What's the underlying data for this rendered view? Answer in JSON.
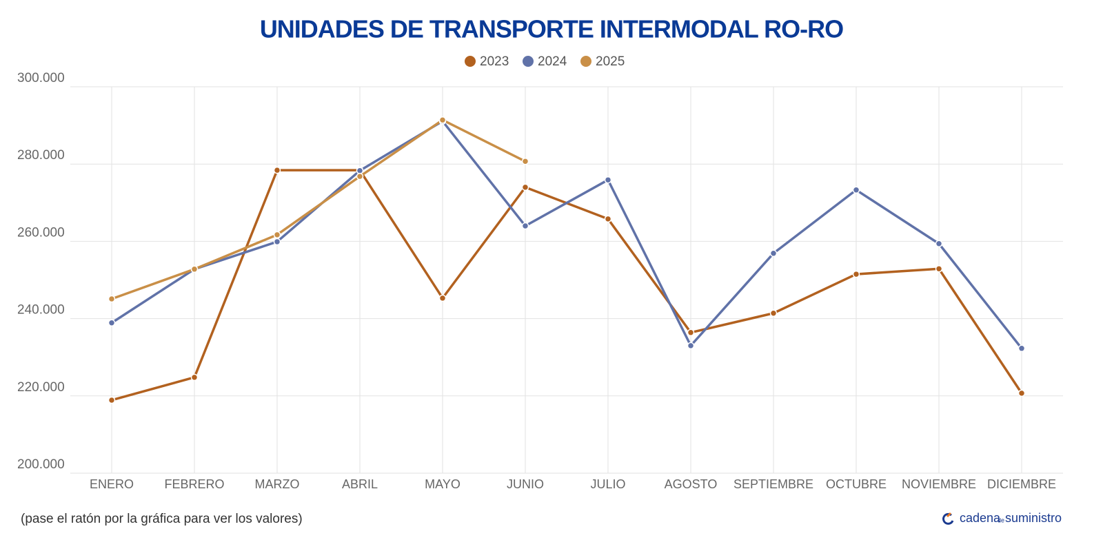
{
  "chart_data": {
    "type": "line",
    "title": "UNIDADES DE TRANSPORTE INTERMODAL RO-RO",
    "categories": [
      "ENERO",
      "FEBRERO",
      "MARZO",
      "ABRIL",
      "MAYO",
      "JUNIO",
      "JULIO",
      "AGOSTO",
      "SEPTIEMBRE",
      "OCTUBRE",
      "NOVIEMBRE",
      "DICIEMBRE"
    ],
    "series": [
      {
        "name": "2023",
        "color": "#b2611f",
        "values": [
          218900,
          224800,
          278400,
          278400,
          245300,
          274000,
          265800,
          236400,
          241400,
          251500,
          252900,
          220700
        ]
      },
      {
        "name": "2024",
        "color": "#6072a8",
        "values": [
          238900,
          252800,
          259900,
          278300,
          291100,
          264000,
          275900,
          233000,
          256900,
          273300,
          259400,
          232300
        ]
      },
      {
        "name": "2025",
        "color": "#c98f47",
        "values": [
          245100,
          252800,
          261700,
          276800,
          291400,
          280700,
          null,
          null,
          null,
          null,
          null,
          null
        ]
      }
    ],
    "ylim": [
      200000,
      300000
    ],
    "yticks": [
      {
        "value": 200000,
        "label": "200.000"
      },
      {
        "value": 220000,
        "label": "220.000"
      },
      {
        "value": 240000,
        "label": "240.000"
      },
      {
        "value": 260000,
        "label": "260.000"
      },
      {
        "value": 280000,
        "label": "280.000"
      },
      {
        "value": 300000,
        "label": "300.000"
      }
    ],
    "grid": true,
    "legend": "top",
    "note": "(pase el ratón por la gráfica para ver los valores)",
    "logo": {
      "part1": "cadena",
      "part2": "de",
      "part3": "suministro"
    }
  }
}
